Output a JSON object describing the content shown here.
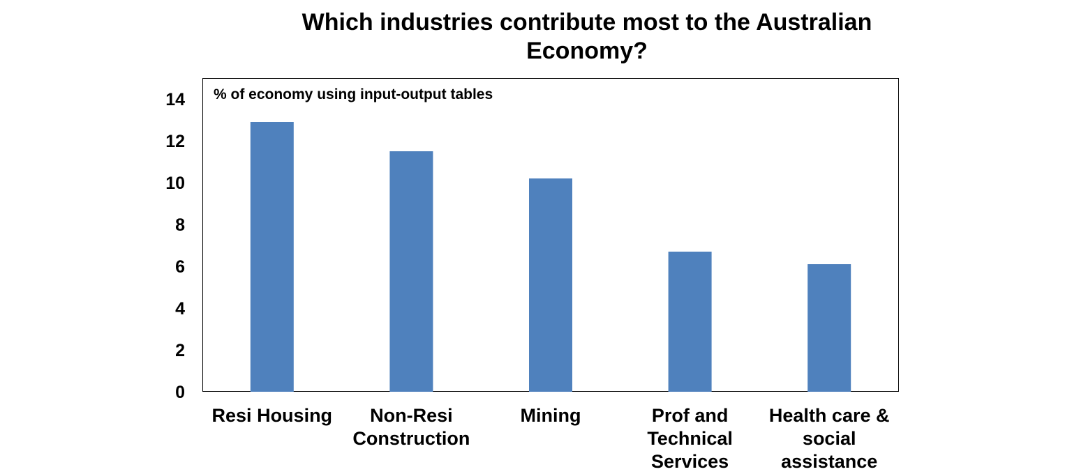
{
  "chart_data": {
    "type": "bar",
    "title": "Which industries contribute most to the Australian Economy?",
    "title_lines": [
      "Which industries contribute most to the Australian",
      "Economy?"
    ],
    "annotation": "% of economy using input-output tables",
    "categories": [
      "Resi Housing",
      "Non-Resi Construction",
      "Mining",
      "Prof and Technical Services",
      "Health care & social assistance"
    ],
    "category_lines": [
      [
        "Resi Housing"
      ],
      [
        "Non-Resi",
        "Construction"
      ],
      [
        "Mining"
      ],
      [
        "Prof and",
        "Technical",
        "Services"
      ],
      [
        "Health care &",
        "social",
        "assistance"
      ]
    ],
    "values": [
      12.9,
      11.5,
      10.2,
      6.7,
      6.1
    ],
    "ylim": [
      0,
      15
    ],
    "yticks": [
      0,
      2,
      4,
      6,
      8,
      10,
      12,
      14
    ],
    "grid": false,
    "legend": "none",
    "bar_color": "#4F81BD",
    "xlabel": "",
    "ylabel": ""
  }
}
